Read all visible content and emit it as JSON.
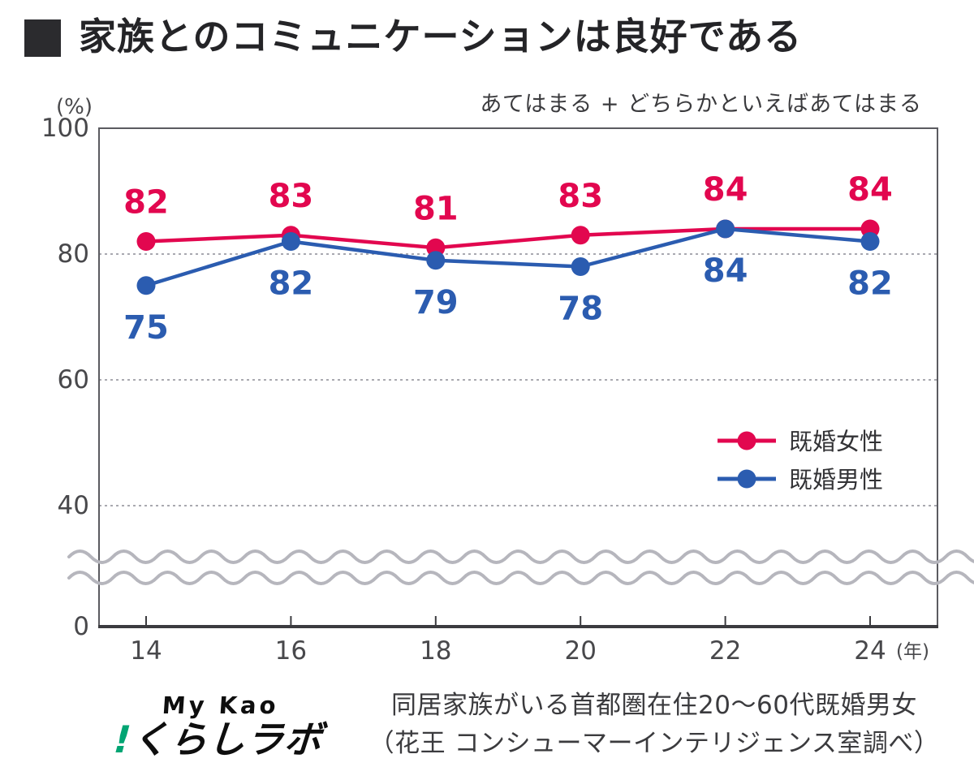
{
  "title": {
    "text": "家族とのコミュニケーションは良好である",
    "bullet_icon": "black-square"
  },
  "chart_data": {
    "type": "line",
    "note": "あてはまる + どちらかといえばあてはまる",
    "y_unit": "(%)",
    "x": [
      14,
      16,
      18,
      20,
      22,
      24
    ],
    "x_labels": [
      "14",
      "16",
      "18",
      "20",
      "22",
      "24"
    ],
    "x_suffix": "(年)",
    "yticks": [
      100,
      80,
      60,
      40,
      0
    ],
    "ylim": [
      0,
      100
    ],
    "visible_range": [
      40,
      100
    ],
    "axis_break": "wavy break between 40 and 0",
    "grid": "horizontal dashed lines at 80 / 60 / 40",
    "legend_position": "inside middle-right",
    "series": [
      {
        "name": "既婚女性",
        "color": "#E2074F",
        "label_position": "above",
        "values": [
          82,
          83,
          81,
          83,
          84,
          84
        ]
      },
      {
        "name": "既婚男性",
        "color": "#2B5CB0",
        "label_position": "below",
        "values": [
          75,
          82,
          79,
          78,
          84,
          82
        ]
      }
    ]
  },
  "footer": {
    "logo": {
      "top": "My Kao",
      "mark": "!",
      "name": "くらしラボ",
      "accent_color": "#00A573"
    },
    "source_line1": "同居家族がいる首都圏在住20〜60代既婚男女",
    "source_line2": "（花王 コンシューマーインテリジェンス室調べ）"
  }
}
